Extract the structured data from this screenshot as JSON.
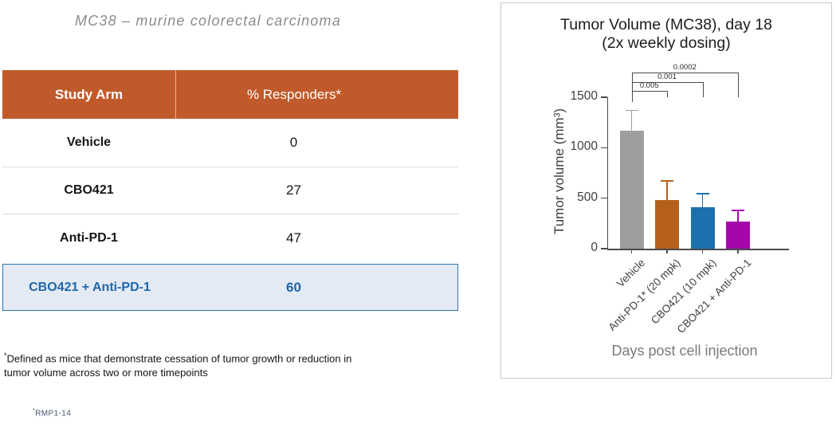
{
  "slide": {
    "title": "MC38 – murine colorectal carcinoma",
    "table": {
      "headers": [
        "Study Arm",
        "% Responders*"
      ],
      "rows": [
        {
          "arm": "Vehicle",
          "responders": "0"
        },
        {
          "arm": "CBO421",
          "responders": "27"
        },
        {
          "arm": "Anti-PD-1",
          "responders": "47"
        },
        {
          "arm": "CBO421 + Anti-PD-1",
          "responders": "60"
        }
      ],
      "colors": {
        "header_bg": "#c15a2b",
        "highlight_bg": "#e3eaf3",
        "highlight_border": "#2e75b5",
        "highlight_text": "#1f66ab"
      }
    },
    "footnote": {
      "marker": "*",
      "line1": "Defined as mice that demonstrate cessation of tumor growth or reduction in",
      "line2": "tumor volume across two or more timepoints"
    },
    "reference": {
      "marker": "*",
      "text": "RMP1-14"
    }
  },
  "chart_data": {
    "type": "bar",
    "title_line1": "Tumor Volume (MC38), day 18",
    "title_line2": "(2x weekly dosing)",
    "ylabel": "Tumor volume (mm³)",
    "xlabel": "Days post cell injection",
    "ylim": [
      0,
      1500
    ],
    "yticks": [
      0,
      500,
      1000,
      1500
    ],
    "categories": [
      "Vehicle",
      "Anti-PD-1* (20 mpk)",
      "CBO421 (10 mpk)",
      "CBO421 + Anti-PD-1"
    ],
    "values": [
      1170,
      480,
      410,
      270
    ],
    "errors_plus": [
      200,
      190,
      135,
      110
    ],
    "bar_colors": [
      "#9e9e9e",
      "#b5611c",
      "#1e6fad",
      "#a607ad"
    ],
    "significance": [
      {
        "from": 0,
        "to": 1,
        "p": "0.005"
      },
      {
        "from": 0,
        "to": 2,
        "p": "0.001"
      },
      {
        "from": 0,
        "to": 3,
        "p": "0.0002"
      }
    ],
    "axis_color": "#4b4b4b",
    "legend": "none",
    "grid": false
  }
}
